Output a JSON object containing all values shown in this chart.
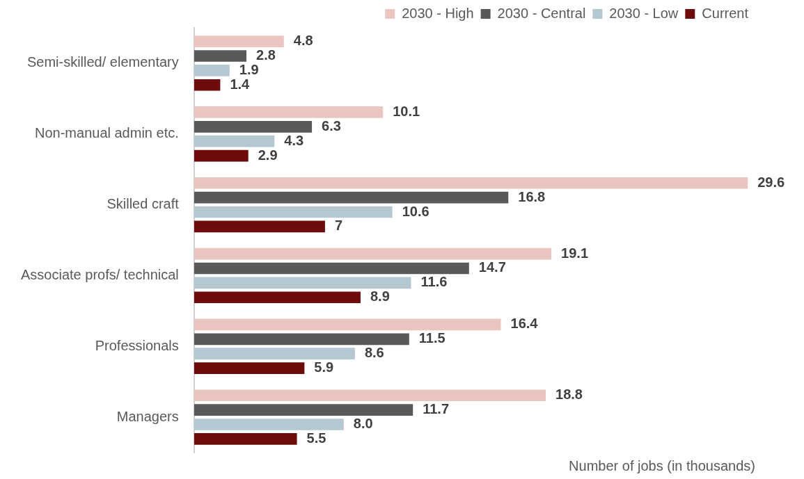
{
  "chart_data": {
    "type": "bar",
    "orientation": "horizontal",
    "xlabel": "Number of jobs (in thousands)",
    "categories": [
      "Semi-skilled/ elementary",
      "Non-manual admin etc.",
      "Skilled craft",
      "Associate profs/ technical",
      "Professionals",
      "Managers"
    ],
    "series": [
      {
        "name": "2030 - High",
        "color": "#ebc6c0",
        "values": [
          4.8,
          10.1,
          29.6,
          19.1,
          16.4,
          18.8
        ],
        "value_labels": [
          "4.8",
          "10.1",
          "29.6",
          "19.1",
          "16.4",
          "18.8"
        ]
      },
      {
        "name": "2030 - Central",
        "color": "#595959",
        "values": [
          2.8,
          6.3,
          16.8,
          14.7,
          11.5,
          11.7
        ],
        "value_labels": [
          "2.8",
          "6.3",
          "16.8",
          "14.7",
          "11.5",
          "11.7"
        ]
      },
      {
        "name": "2030 - Low",
        "color": "#b5c8d1",
        "values": [
          1.9,
          4.3,
          10.6,
          11.6,
          8.6,
          8.0
        ],
        "value_labels": [
          "1.9",
          "4.3",
          "10.6",
          "11.6",
          "8.6",
          "8.0"
        ]
      },
      {
        "name": "Current",
        "color": "#6e0c0c",
        "values": [
          1.4,
          2.9,
          7,
          8.9,
          5.9,
          5.5
        ],
        "value_labels": [
          "1.4",
          "2.9",
          "7",
          "8.9",
          "5.9",
          "5.5"
        ]
      }
    ],
    "legend": "top right",
    "grid": false
  }
}
